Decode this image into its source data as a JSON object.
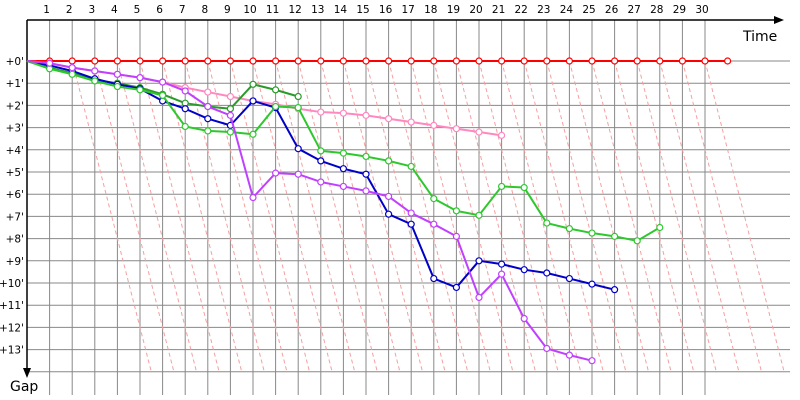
{
  "chart_data": {
    "type": "line",
    "xlabel": "Time",
    "ylabel": "Gap",
    "x_ticks": [
      "1",
      "2",
      "3",
      "4",
      "5",
      "6",
      "7",
      "8",
      "9",
      "10",
      "11",
      "12",
      "13",
      "14",
      "15",
      "16",
      "17",
      "18",
      "19",
      "20",
      "21",
      "22",
      "23",
      "24",
      "25",
      "26",
      "27",
      "28",
      "29",
      "30"
    ],
    "y_ticks": [
      "+0'",
      "+1'",
      "+2'",
      "+3'",
      "+4'",
      "+5'",
      "+6'",
      "+7'",
      "+8'",
      "+9'",
      "+10'",
      "+11'",
      "+12'",
      "+13'"
    ],
    "xlim": [
      0,
      31.2
    ],
    "ylim": [
      0,
      14
    ],
    "y_inverted": true,
    "grid": true,
    "reference_lines": {
      "description": "dashed pink diagonals from each lap mark",
      "color": "#f4a0a0",
      "start_laps": [
        2,
        3,
        4,
        5,
        6,
        7,
        8,
        9,
        10,
        11,
        12,
        13,
        14,
        15,
        16,
        17,
        18,
        19,
        20,
        21,
        22,
        23,
        24,
        25,
        26,
        27,
        28,
        29,
        30
      ],
      "slope_x_per_gap_minute": 0.25
    },
    "series": [
      {
        "color": "#ff0000",
        "points": [
          [
            0,
            0
          ],
          [
            1,
            0
          ],
          [
            2,
            0
          ],
          [
            3,
            0
          ],
          [
            4,
            0
          ],
          [
            5,
            0
          ],
          [
            6,
            0
          ],
          [
            7,
            0
          ],
          [
            8,
            0
          ],
          [
            9,
            0
          ],
          [
            10,
            0
          ],
          [
            11,
            0
          ],
          [
            12,
            0
          ],
          [
            13,
            0
          ],
          [
            14,
            0
          ],
          [
            15,
            0
          ],
          [
            16,
            0
          ],
          [
            17,
            0
          ],
          [
            18,
            0
          ],
          [
            19,
            0
          ],
          [
            20,
            0
          ],
          [
            21,
            0
          ],
          [
            22,
            0
          ],
          [
            23,
            0
          ],
          [
            24,
            0
          ],
          [
            25,
            0
          ],
          [
            26,
            0
          ],
          [
            27,
            0
          ],
          [
            28,
            0
          ],
          [
            29,
            0
          ],
          [
            30,
            0
          ],
          [
            31,
            0
          ]
        ]
      },
      {
        "color": "#ff88c0",
        "points": [
          [
            0,
            0
          ],
          [
            1,
            0.1
          ],
          [
            2,
            0.3
          ],
          [
            3,
            0.45
          ],
          [
            4,
            0.6
          ],
          [
            5,
            0.75
          ],
          [
            6,
            0.95
          ],
          [
            7,
            1.2
          ],
          [
            8,
            1.4
          ],
          [
            9,
            1.6
          ],
          [
            10,
            1.8
          ],
          [
            11,
            1.95
          ],
          [
            12,
            2.15
          ],
          [
            13,
            2.3
          ],
          [
            14,
            2.35
          ],
          [
            15,
            2.45
          ],
          [
            16,
            2.6
          ],
          [
            17,
            2.75
          ],
          [
            18,
            2.9
          ],
          [
            19,
            3.05
          ],
          [
            20,
            3.2
          ],
          [
            21,
            3.35
          ]
        ]
      },
      {
        "color": "#2a9a2a",
        "points": [
          [
            0,
            0
          ],
          [
            1,
            0.3
          ],
          [
            2,
            0.55
          ],
          [
            3,
            0.85
          ],
          [
            4,
            1.0
          ],
          [
            5,
            1.2
          ],
          [
            6,
            1.5
          ],
          [
            7,
            1.9
          ],
          [
            8,
            2.05
          ],
          [
            9,
            2.15
          ],
          [
            10,
            1.05
          ],
          [
            11,
            1.3
          ],
          [
            12,
            1.6
          ]
        ]
      },
      {
        "color": "#0000c8",
        "points": [
          [
            0,
            0
          ],
          [
            1,
            0.2
          ],
          [
            2,
            0.45
          ],
          [
            3,
            0.8
          ],
          [
            4,
            1.05
          ],
          [
            5,
            1.25
          ],
          [
            6,
            1.8
          ],
          [
            7,
            2.15
          ],
          [
            8,
            2.6
          ],
          [
            9,
            2.9
          ],
          [
            10,
            1.8
          ],
          [
            11,
            2.1
          ],
          [
            12,
            3.95
          ],
          [
            13,
            4.5
          ],
          [
            14,
            4.85
          ],
          [
            15,
            5.1
          ],
          [
            16,
            6.9
          ],
          [
            17,
            7.35
          ],
          [
            18,
            9.8
          ],
          [
            19,
            10.2
          ],
          [
            20,
            9.0
          ],
          [
            21,
            9.15
          ],
          [
            22,
            9.4
          ],
          [
            23,
            9.55
          ],
          [
            24,
            9.8
          ],
          [
            25,
            10.05
          ],
          [
            26,
            10.3
          ]
        ]
      },
      {
        "color": "#2ec82e",
        "points": [
          [
            0,
            0
          ],
          [
            1,
            0.35
          ],
          [
            2,
            0.6
          ],
          [
            3,
            0.9
          ],
          [
            4,
            1.15
          ],
          [
            5,
            1.3
          ],
          [
            6,
            1.55
          ],
          [
            7,
            2.95
          ],
          [
            8,
            3.15
          ],
          [
            9,
            3.2
          ],
          [
            10,
            3.3
          ],
          [
            11,
            2.05
          ],
          [
            12,
            2.1
          ],
          [
            13,
            4.05
          ],
          [
            14,
            4.15
          ],
          [
            15,
            4.3
          ],
          [
            16,
            4.5
          ],
          [
            17,
            4.75
          ],
          [
            18,
            6.2
          ],
          [
            19,
            6.75
          ],
          [
            20,
            6.95
          ],
          [
            21,
            5.65
          ],
          [
            22,
            5.7
          ],
          [
            23,
            7.3
          ],
          [
            24,
            7.55
          ],
          [
            25,
            7.75
          ],
          [
            26,
            7.9
          ],
          [
            27,
            8.1
          ],
          [
            28,
            7.5
          ]
        ]
      },
      {
        "color": "#c040ff",
        "points": [
          [
            0,
            0
          ],
          [
            1,
            0.1
          ],
          [
            2,
            0.3
          ],
          [
            3,
            0.45
          ],
          [
            4,
            0.6
          ],
          [
            5,
            0.75
          ],
          [
            6,
            0.95
          ],
          [
            7,
            1.35
          ],
          [
            8,
            2.05
          ],
          [
            9,
            2.45
          ],
          [
            10,
            6.15
          ],
          [
            11,
            5.05
          ],
          [
            12,
            5.1
          ],
          [
            13,
            5.45
          ],
          [
            14,
            5.65
          ],
          [
            15,
            5.85
          ],
          [
            16,
            6.1
          ],
          [
            17,
            6.85
          ],
          [
            18,
            7.35
          ],
          [
            19,
            7.9
          ],
          [
            20,
            10.65
          ],
          [
            21,
            9.6
          ],
          [
            22,
            11.6
          ],
          [
            23,
            12.95
          ],
          [
            24,
            13.25
          ],
          [
            25,
            13.5
          ]
        ]
      }
    ],
    "colors": {
      "grid": "#888888",
      "reference": "#f4a0a0",
      "axis": "#000000"
    }
  }
}
